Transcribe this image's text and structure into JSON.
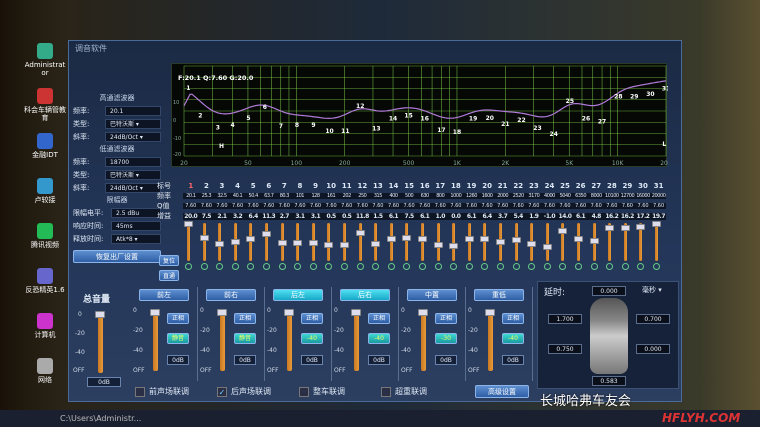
{
  "window": {
    "title": "调音软件"
  },
  "desktop_icons": [
    "Administrator",
    "科会车辆管教育",
    "金融IDT",
    "卢较接",
    "腾讯视频",
    "反恐精英1.6",
    "计算机",
    "网络"
  ],
  "taskbar": {
    "path": "C:\\Users\\Administr..."
  },
  "left_panel": {
    "hp_title": "高通滤波器",
    "hp_freq_label": "频率:",
    "hp_freq": "20.1",
    "hp_type_label": "类型:",
    "hp_type": "巴特沃斯 ▾",
    "hp_slope_label": "斜率:",
    "hp_slope": "24dB/Oct ▾",
    "lp_title": "低通滤波器",
    "lp_freq_label": "频率:",
    "lp_freq": "18700",
    "lp_type_label": "类型:",
    "lp_type": "巴特沃斯 ▾",
    "lp_slope_label": "斜率:",
    "lp_slope": "24dB/Oct ▾",
    "lim_title": "限幅器",
    "lim_level_label": "限幅电平:",
    "lim_level": "2.5 dBu",
    "attack_label": "响应时间:",
    "attack": "45ms",
    "release_label": "释放时间:",
    "release": "Atk*8 ▾",
    "factory_btn": "恢复出厂设置"
  },
  "graph": {
    "readout": "F:20.1 Q:7.60 G:20.0",
    "x_ticks": [
      "20",
      "50",
      "100",
      "200",
      "500",
      "1K",
      "2K",
      "5K",
      "10K",
      "20K"
    ],
    "y_ticks": [
      "10",
      "0",
      "-10",
      "-20"
    ],
    "hp_marker": "H",
    "lp_marker": "L",
    "curve_color": "#b07ad8",
    "grid_color": "#7fd24a"
  },
  "eq": {
    "row_labels": [
      "标号",
      "频率",
      "Q值",
      "增益"
    ],
    "freqs": [
      "20.1",
      "25.3",
      "32.5",
      "40.1",
      "50.4",
      "63.7",
      "80.3",
      "101",
      "128",
      "161",
      "202",
      "250",
      "315",
      "400",
      "500",
      "630",
      "800",
      "1000",
      "1260",
      "1600",
      "2000",
      "2520",
      "3170",
      "4000",
      "5040",
      "6350",
      "8000",
      "10100",
      "12700",
      "16000",
      "20000"
    ],
    "q": "7.60",
    "gains": [
      20.0,
      7.5,
      2.1,
      3.2,
      6.4,
      11.3,
      2.7,
      3.1,
      3.1,
      0.5,
      0.5,
      11.8,
      1.5,
      6.1,
      7.5,
      6.1,
      1.0,
      0.0,
      6.1,
      6.4,
      3.7,
      5.4,
      1.9,
      -1.0,
      14.0,
      6.1,
      4.8,
      16.2,
      16.2,
      17.2,
      19.7
    ],
    "reset_btn": "复位",
    "bypass_btn": "直通"
  },
  "master": {
    "title": "总音量",
    "value": "0dB",
    "scale": [
      "0",
      "-20",
      "-40",
      "OFF"
    ]
  },
  "channels": [
    {
      "name": "前左",
      "phase": "正相",
      "mute": "静音",
      "value": "0dB",
      "active": false
    },
    {
      "name": "前右",
      "phase": "正相",
      "mute": "静音",
      "value": "0dB",
      "active": false
    },
    {
      "name": "后左",
      "phase": "正相",
      "mute": "-40",
      "value": "0dB",
      "active": true
    },
    {
      "name": "后右",
      "phase": "正相",
      "mute": "-40",
      "value": "0dB",
      "active": true
    },
    {
      "name": "中置",
      "phase": "正相",
      "mute": "-30",
      "value": "0dB",
      "active": false
    },
    {
      "name": "重低",
      "phase": "正相",
      "mute": "-40",
      "value": "0dB",
      "active": false
    }
  ],
  "channel_scale": [
    "0",
    "-20",
    "-40",
    "OFF"
  ],
  "links": [
    {
      "label": "前声场联调",
      "checked": false
    },
    {
      "label": "后声场联调",
      "checked": true
    },
    {
      "label": "整车联调",
      "checked": false
    },
    {
      "label": "超重联调",
      "checked": false
    }
  ],
  "advanced_btn": "高级设置",
  "delay": {
    "label": "延时:",
    "unit": "毫秒 ▾",
    "top": "0.000",
    "fl": "1.700",
    "fr": "0.700",
    "rl": "0.750",
    "rr": "0.000",
    "bottom": "0.583"
  },
  "watermark": {
    "text": "长城哈弗车友会",
    "logo": "HFLYH.COM"
  }
}
